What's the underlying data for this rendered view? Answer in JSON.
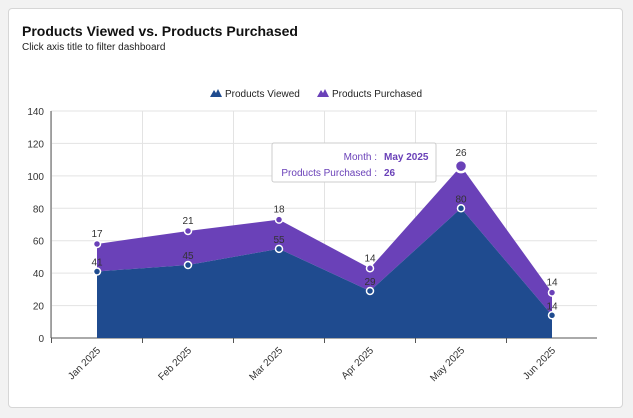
{
  "header": {
    "title": "Products Viewed vs. Products Purchased",
    "subtitle": "Click axis title to filter dashboard"
  },
  "colors": {
    "viewed": "#1f4b8f",
    "purchased": "#6a41b8",
    "grid": "#e3e3e3",
    "axis": "#555555"
  },
  "tooltip": {
    "month_label": "Month :",
    "month_value": "May 2025",
    "series_label": "Products Purchased :",
    "series_value": "26"
  },
  "chart_data": {
    "type": "area",
    "stacked": true,
    "title": "Products Viewed vs. Products Purchased",
    "xlabel": "",
    "ylabel": "",
    "categories": [
      "Jan 2025",
      "Feb 2025",
      "Mar 2025",
      "Apr 2025",
      "May 2025",
      "Jun 2025"
    ],
    "series": [
      {
        "name": "Products Viewed",
        "values": [
          41,
          45,
          55,
          29,
          80,
          14
        ]
      },
      {
        "name": "Products Purchased",
        "values": [
          17,
          21,
          18,
          14,
          26,
          14
        ]
      }
    ],
    "ylim": [
      0,
      140
    ],
    "yticks": [
      0,
      20,
      40,
      60,
      80,
      100,
      120,
      140
    ],
    "grid": true,
    "legend_position": "top-center",
    "highlighted_point": {
      "series": "Products Purchased",
      "category": "May 2025"
    }
  }
}
